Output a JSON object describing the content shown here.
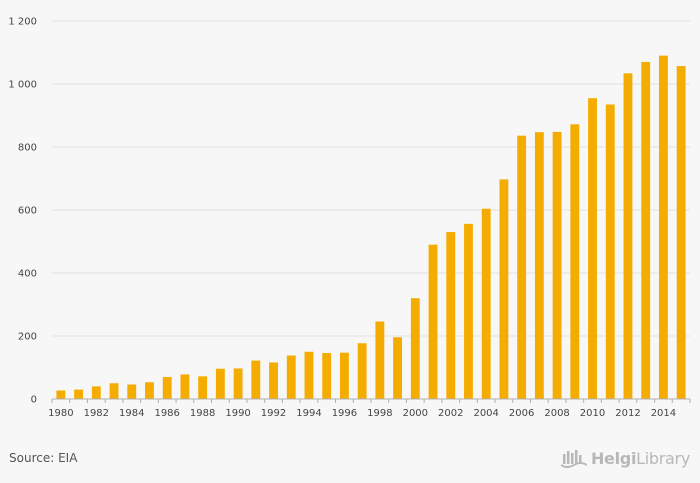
{
  "chart_data": {
    "type": "bar",
    "title": "",
    "xlabel": "",
    "ylabel": "",
    "ylim": [
      0,
      1200
    ],
    "yticks": [
      0,
      200,
      400,
      600,
      800,
      1000,
      1200
    ],
    "ytick_labels": [
      "0",
      "200",
      "400",
      "600",
      "800",
      "1 000",
      "1 200"
    ],
    "categories": [
      "1980",
      "1981",
      "1982",
      "1983",
      "1984",
      "1985",
      "1986",
      "1987",
      "1988",
      "1989",
      "1990",
      "1991",
      "1992",
      "1993",
      "1994",
      "1995",
      "1996",
      "1997",
      "1998",
      "1999",
      "2000",
      "2001",
      "2002",
      "2003",
      "2004",
      "2005",
      "2006",
      "2007",
      "2008",
      "2009",
      "2010",
      "2011",
      "2012",
      "2013",
      "2014",
      "2015"
    ],
    "x_tick_labels": [
      "1980",
      "",
      "1982",
      "",
      "1984",
      "",
      "1986",
      "",
      "1988",
      "",
      "1990",
      "",
      "1992",
      "",
      "1994",
      "",
      "1996",
      "",
      "1998",
      "",
      "2000",
      "",
      "2002",
      "",
      "2004",
      "",
      "2006",
      "",
      "2008",
      "",
      "2010",
      "",
      "2012",
      "",
      "2014",
      ""
    ],
    "values": [
      27,
      30,
      40,
      50,
      46,
      53,
      70,
      78,
      72,
      96,
      97,
      122,
      116,
      138,
      150,
      146,
      147,
      177,
      246,
      196,
      320,
      490,
      530,
      556,
      604,
      697,
      836,
      847,
      848,
      872,
      955,
      935,
      1034,
      1070,
      1090,
      1057
    ],
    "bar_color": "#f5ac00",
    "grid": true
  },
  "footer": {
    "source": "Source: EIA",
    "logo_bold": "Helgi",
    "logo_light": "Library"
  },
  "colors": {
    "logo": "#b8b8b8",
    "grid": "#e2e2e2",
    "axis": "#b0b0b0"
  },
  "icons": {
    "logo": "helgi-library-logo-icon"
  }
}
